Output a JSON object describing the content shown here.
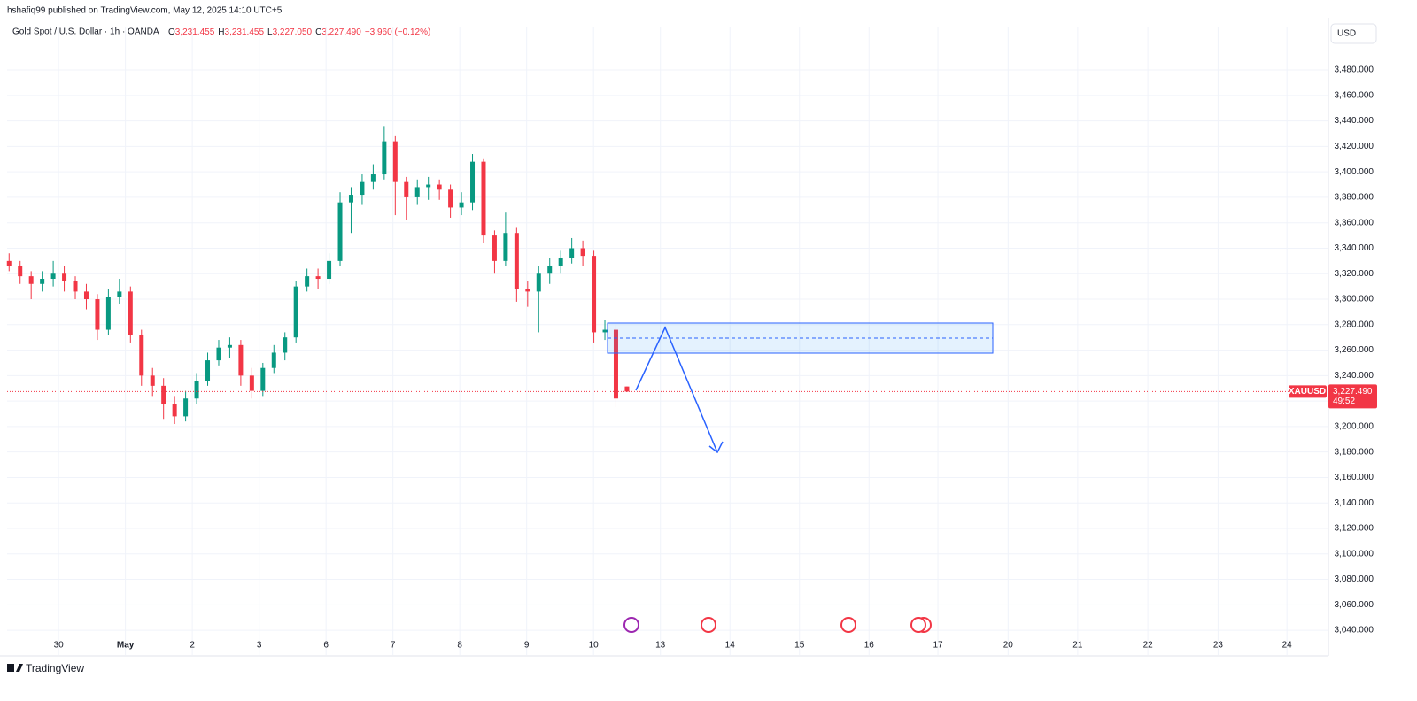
{
  "header": {
    "publisher": "hshafiq99 published on TradingView.com, May 12, 2025 14:10 UTC+5",
    "symbol": "Gold Spot / U.S. Dollar · 1h · OANDA",
    "o_label": "O",
    "o": "3,231.455",
    "h_label": "H",
    "h": "3,231.455",
    "l_label": "L",
    "l": "3,227.050",
    "c_label": "C",
    "c": "3,227.490",
    "change": "−3.960 (−0.12%)"
  },
  "footer": {
    "brand": "TradingView"
  },
  "chart_data": {
    "type": "candlestick",
    "title": "Gold Spot / U.S. Dollar",
    "x": [
      -0.74,
      -0.575,
      -0.41,
      -0.245,
      -0.08,
      0.085,
      0.25,
      0.415,
      0.58,
      0.745,
      0.91,
      1.075,
      1.24,
      1.405,
      1.57,
      1.735,
      1.9,
      2.065,
      2.23,
      2.395,
      2.56,
      2.725,
      2.89,
      3.055,
      3.22,
      3.385,
      3.55,
      3.715,
      3.88,
      4.045,
      4.21,
      4.375,
      4.54,
      4.705,
      4.87,
      5.035,
      5.2,
      5.365,
      5.53,
      5.695,
      5.86,
      6.025,
      6.19,
      6.355,
      6.52,
      6.685,
      6.85,
      7.015,
      7.18,
      7.345,
      7.51,
      7.675,
      7.84,
      8.005,
      8.17,
      8.335,
      8.5
    ],
    "open": [
      3330,
      3326,
      3318,
      3312,
      3316,
      3320,
      3314,
      3306,
      3300,
      3276,
      3302,
      3306,
      3272,
      3240,
      3232,
      3218,
      3208,
      3222,
      3236,
      3252,
      3262,
      3264,
      3240,
      3228,
      3246,
      3258,
      3270,
      3310,
      3318,
      3316,
      3330,
      3376,
      3382,
      3392,
      3398,
      3424,
      3392,
      3380,
      3388,
      3390,
      3386,
      3372,
      3376,
      3408,
      3350,
      3330,
      3352,
      3308,
      3306,
      3320,
      3326,
      3332,
      3340,
      3334,
      3274,
      3276,
      3231.455
    ],
    "high": [
      3336,
      3330,
      3322,
      3322,
      3330,
      3326,
      3318,
      3312,
      3304,
      3308,
      3316,
      3310,
      3276,
      3246,
      3238,
      3224,
      3228,
      3242,
      3258,
      3268,
      3270,
      3268,
      3246,
      3250,
      3264,
      3274,
      3314,
      3324,
      3324,
      3336,
      3384,
      3388,
      3398,
      3406,
      3436,
      3428,
      3396,
      3394,
      3396,
      3394,
      3390,
      3384,
      3414,
      3410,
      3354,
      3368,
      3356,
      3314,
      3326,
      3332,
      3338,
      3348,
      3346,
      3338,
      3284,
      3280,
      3231.455
    ],
    "low": [
      3322,
      3312,
      3300,
      3306,
      3310,
      3306,
      3300,
      3292,
      3268,
      3272,
      3296,
      3266,
      3232,
      3224,
      3206,
      3202,
      3204,
      3218,
      3232,
      3248,
      3254,
      3232,
      3222,
      3224,
      3242,
      3252,
      3266,
      3306,
      3308,
      3312,
      3326,
      3352,
      3374,
      3386,
      3394,
      3366,
      3362,
      3374,
      3378,
      3378,
      3364,
      3366,
      3370,
      3344,
      3320,
      3326,
      3298,
      3294,
      3274,
      3312,
      3320,
      3328,
      3326,
      3266,
      3268,
      3215,
      3227.05
    ],
    "close": [
      3326,
      3318,
      3312,
      3316,
      3320,
      3314,
      3306,
      3300,
      3276,
      3302,
      3306,
      3272,
      3240,
      3232,
      3218,
      3208,
      3222,
      3236,
      3252,
      3262,
      3264,
      3240,
      3228,
      3246,
      3258,
      3270,
      3310,
      3318,
      3316,
      3330,
      3376,
      3382,
      3392,
      3398,
      3424,
      3392,
      3380,
      3388,
      3390,
      3386,
      3372,
      3376,
      3408,
      3350,
      3330,
      3352,
      3308,
      3306,
      3320,
      3326,
      3332,
      3340,
      3334,
      3274,
      3276,
      3222,
      3227.49
    ],
    "up_color": "#089981",
    "down_color": "#f23645",
    "xlim": [
      -0.77,
      18.99
    ],
    "xticks": [
      {
        "value": 0,
        "label": "30"
      },
      {
        "value": 1,
        "label": "May"
      },
      {
        "value": 2,
        "label": "2"
      },
      {
        "value": 3,
        "label": "3"
      },
      {
        "value": 4,
        "label": "6"
      },
      {
        "value": 5,
        "label": "7"
      },
      {
        "value": 6,
        "label": "8"
      },
      {
        "value": 7,
        "label": "9"
      },
      {
        "value": 8,
        "label": "10"
      },
      {
        "value": 9,
        "label": "13"
      },
      {
        "value": 10.04,
        "label": "14"
      },
      {
        "value": 11.08,
        "label": "15"
      },
      {
        "value": 12.12,
        "label": "16"
      },
      {
        "value": 13.15,
        "label": "17"
      },
      {
        "value": 14.2,
        "label": "20"
      },
      {
        "value": 15.24,
        "label": "21"
      },
      {
        "value": 16.29,
        "label": "22"
      },
      {
        "value": 17.34,
        "label": "23"
      },
      {
        "value": 18.37,
        "label": "24"
      }
    ],
    "ylim": [
      3020.6,
      3514.1
    ],
    "yticks": [
      {
        "value": 3040,
        "label": "3,040.000"
      },
      {
        "value": 3060,
        "label": "3,060.000"
      },
      {
        "value": 3080,
        "label": "3,080.000"
      },
      {
        "value": 3100,
        "label": "3,100.000"
      },
      {
        "value": 3120,
        "label": "3,120.000"
      },
      {
        "value": 3140,
        "label": "3,140.000"
      },
      {
        "value": 3160,
        "label": "3,160.000"
      },
      {
        "value": 3180,
        "label": "3,180.000"
      },
      {
        "value": 3200,
        "label": "3,200.000"
      },
      {
        "value": 3220,
        "label": "3,220.000"
      },
      {
        "value": 3240,
        "label": "3,240.000"
      },
      {
        "value": 3260,
        "label": "3,260.000"
      },
      {
        "value": 3280,
        "label": "3,280.000"
      },
      {
        "value": 3300,
        "label": "3,300.000"
      },
      {
        "value": 3320,
        "label": "3,320.000"
      },
      {
        "value": 3340,
        "label": "3,340.000"
      },
      {
        "value": 3360,
        "label": "3,360.000"
      },
      {
        "value": 3380,
        "label": "3,380.000"
      },
      {
        "value": 3400,
        "label": "3,400.000"
      },
      {
        "value": 3420,
        "label": "3,420.000"
      },
      {
        "value": 3440,
        "label": "3,440.000"
      },
      {
        "value": 3460,
        "label": "3,460.000"
      },
      {
        "value": 3480,
        "label": "3,480.000"
      }
    ],
    "grid": true,
    "currency": "USD",
    "symbol_tag": "XAUUSD",
    "last_price": {
      "value": 3227.49,
      "label": "3,227.490"
    },
    "countdown": "49:52"
  }
}
